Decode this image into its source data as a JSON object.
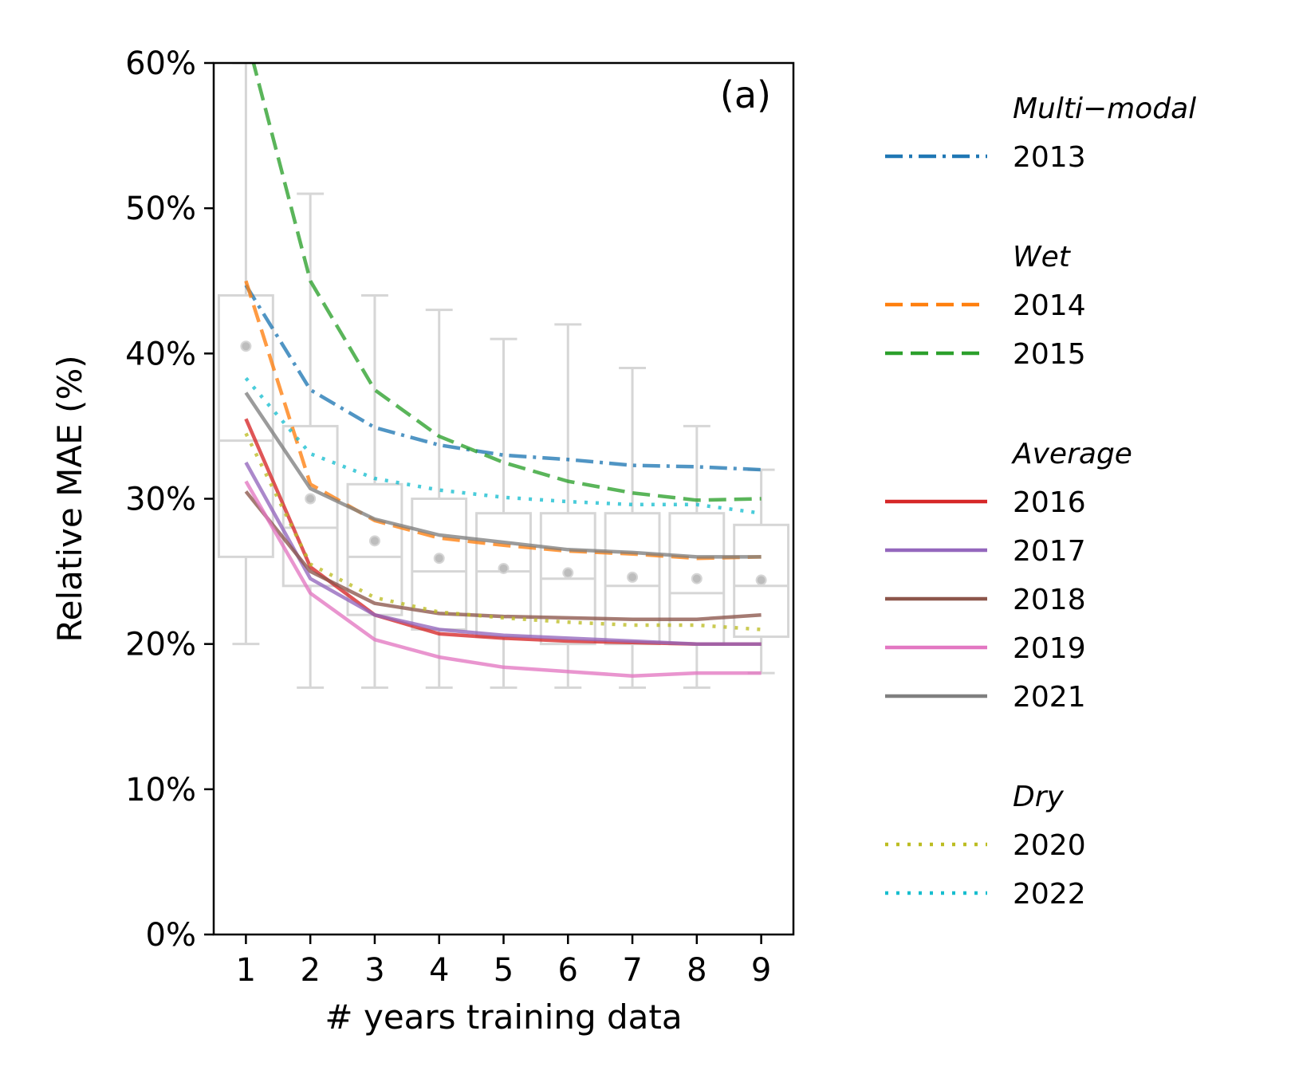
{
  "chart_data": {
    "type": "line",
    "panel_label": "(a)",
    "xlabel": "# years training data",
    "ylabel": "Relative MAE (%)",
    "x": [
      1,
      2,
      3,
      4,
      5,
      6,
      7,
      8,
      9
    ],
    "xlim": [
      0.5,
      9.5
    ],
    "ylim": [
      0,
      60
    ],
    "x_ticks": [
      "1",
      "2",
      "3",
      "4",
      "5",
      "6",
      "7",
      "8",
      "9"
    ],
    "y_ticks": [
      {
        "value": 0,
        "label": "0%"
      },
      {
        "value": 10,
        "label": "10%"
      },
      {
        "value": 20,
        "label": "20%"
      },
      {
        "value": 30,
        "label": "30%"
      },
      {
        "value": 40,
        "label": "40%"
      },
      {
        "value": 50,
        "label": "50%"
      },
      {
        "value": 60,
        "label": "60%"
      }
    ],
    "grid": false,
    "legend_placement": "outside right",
    "boxplots": [
      {
        "x": 1,
        "whislo": 20,
        "q1": 26,
        "med": 34,
        "q3": 44,
        "whishi": 60,
        "mean": 40.5
      },
      {
        "x": 2,
        "whislo": 17,
        "q1": 24,
        "med": 28,
        "q3": 35,
        "whishi": 51,
        "mean": 30
      },
      {
        "x": 3,
        "whislo": 17,
        "q1": 22,
        "med": 26,
        "q3": 31,
        "whishi": 44,
        "mean": 27.1
      },
      {
        "x": 4,
        "whislo": 17,
        "q1": 21,
        "med": 25,
        "q3": 30,
        "whishi": 43,
        "mean": 25.9
      },
      {
        "x": 5,
        "whislo": 17,
        "q1": 20.5,
        "med": 25,
        "q3": 29,
        "whishi": 41,
        "mean": 25.2
      },
      {
        "x": 6,
        "whislo": 17,
        "q1": 20,
        "med": 24.5,
        "q3": 29,
        "whishi": 42,
        "mean": 24.9
      },
      {
        "x": 7,
        "whislo": 17,
        "q1": 20,
        "med": 24,
        "q3": 29,
        "whishi": 39,
        "mean": 24.6
      },
      {
        "x": 8,
        "whislo": 17,
        "q1": 20,
        "med": 23.5,
        "q3": 29,
        "whishi": 35,
        "mean": 24.5
      },
      {
        "x": 9,
        "whislo": 18,
        "q1": 20.5,
        "med": 24,
        "q3": 28.2,
        "whishi": 32,
        "mean": 24.4
      }
    ],
    "legend_groups": [
      {
        "heading": "Multi−modal",
        "series": [
          "2013"
        ]
      },
      {
        "heading": "Wet",
        "series": [
          "2014",
          "2015"
        ]
      },
      {
        "heading": "Average",
        "series": [
          "2016",
          "2017",
          "2018",
          "2019",
          "2021"
        ]
      },
      {
        "heading": "Dry",
        "series": [
          "2020",
          "2022"
        ]
      }
    ],
    "series": [
      {
        "name": "2013",
        "color": "#1f77b4",
        "style": "dashdot",
        "values": [
          44.7,
          37.5,
          34.9,
          33.7,
          33.0,
          32.7,
          32.3,
          32.2,
          32.0
        ]
      },
      {
        "name": "2014",
        "color": "#ff7f0e",
        "style": "dashed",
        "values": [
          45.0,
          31.0,
          28.5,
          27.3,
          26.8,
          26.4,
          26.2,
          25.9,
          26.0
        ]
      },
      {
        "name": "2015",
        "color": "#2ca02c",
        "style": "dashed",
        "values": [
          62.0,
          45.0,
          37.5,
          34.3,
          32.5,
          31.2,
          30.4,
          29.9,
          30.0
        ]
      },
      {
        "name": "2016",
        "color": "#d62728",
        "style": "solid",
        "values": [
          35.5,
          25.3,
          22.0,
          20.7,
          20.4,
          20.2,
          20.1,
          20.0,
          20.0
        ]
      },
      {
        "name": "2017",
        "color": "#9467bd",
        "style": "solid",
        "values": [
          32.5,
          24.5,
          22.0,
          21.0,
          20.6,
          20.4,
          20.2,
          20.0,
          20.0
        ]
      },
      {
        "name": "2018",
        "color": "#8c564b",
        "style": "solid",
        "values": [
          30.5,
          25.0,
          22.8,
          22.1,
          21.9,
          21.8,
          21.7,
          21.7,
          22.0
        ]
      },
      {
        "name": "2019",
        "color": "#e377c2",
        "style": "solid",
        "values": [
          31.2,
          23.5,
          20.3,
          19.1,
          18.4,
          18.1,
          17.8,
          18.0,
          18.0
        ]
      },
      {
        "name": "2021",
        "color": "#7f7f7f",
        "style": "solid",
        "values": [
          37.3,
          30.7,
          28.6,
          27.5,
          27.0,
          26.5,
          26.3,
          26.0,
          26.0
        ]
      },
      {
        "name": "2020",
        "color": "#bcbd22",
        "style": "dotted",
        "values": [
          34.5,
          25.5,
          23.2,
          22.2,
          21.8,
          21.5,
          21.3,
          21.3,
          21.0
        ]
      },
      {
        "name": "2022",
        "color": "#17becf",
        "style": "dotted",
        "values": [
          38.3,
          33.1,
          31.4,
          30.6,
          30.1,
          29.8,
          29.6,
          29.6,
          29.0
        ]
      }
    ]
  }
}
